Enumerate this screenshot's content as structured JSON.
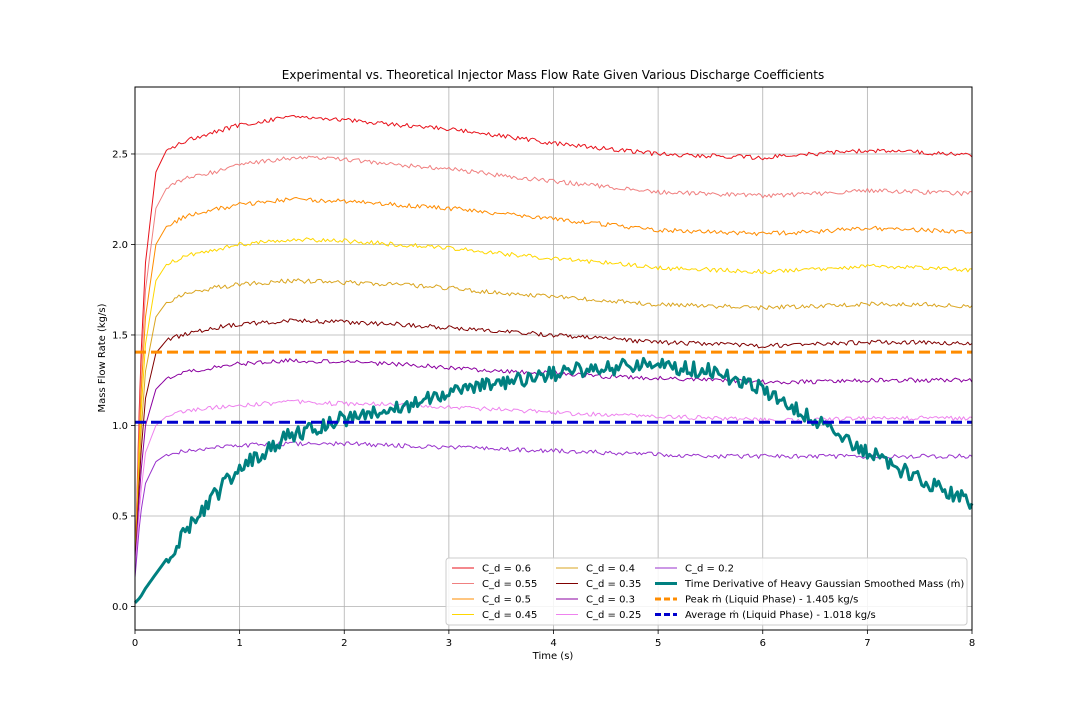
{
  "chart_data": {
    "type": "line",
    "title": "Experimental vs. Theoretical Injector Mass Flow Rate Given Various Discharge Coefficients",
    "xlabel": "Time (s)",
    "ylabel": "Mass Flow Rate (kg/s)",
    "xlim": [
      0,
      8
    ],
    "ylim": [
      -0.13,
      2.87
    ],
    "x_ticks": [
      "0",
      "1",
      "2",
      "3",
      "4",
      "5",
      "6",
      "7",
      "8"
    ],
    "y_ticks": [
      "0.0",
      "0.5",
      "1.0",
      "1.5",
      "2.0",
      "2.5"
    ],
    "grid": true,
    "legend_position": "lower-right",
    "x": [
      0.0,
      0.05,
      0.1,
      0.2,
      0.3,
      0.5,
      0.75,
      1.0,
      1.5,
      2.0,
      2.5,
      3.0,
      3.5,
      4.0,
      4.5,
      5.0,
      5.5,
      6.0,
      6.5,
      7.0,
      7.5,
      8.0
    ],
    "series": [
      {
        "name": "C_d = 0.6",
        "color": "#e8121b",
        "values": [
          0.2,
          1.3,
          1.9,
          2.4,
          2.52,
          2.58,
          2.62,
          2.66,
          2.71,
          2.69,
          2.66,
          2.64,
          2.6,
          2.56,
          2.53,
          2.5,
          2.49,
          2.48,
          2.5,
          2.52,
          2.51,
          2.49
        ]
      },
      {
        "name": "C_d = 0.55",
        "color": "#f08080",
        "values": [
          0.2,
          1.2,
          1.75,
          2.2,
          2.31,
          2.37,
          2.4,
          2.44,
          2.48,
          2.47,
          2.44,
          2.42,
          2.38,
          2.35,
          2.32,
          2.29,
          2.28,
          2.27,
          2.28,
          2.3,
          2.29,
          2.28
        ]
      },
      {
        "name": "C_d = 0.5",
        "color": "#ff8c00",
        "values": [
          0.2,
          1.1,
          1.6,
          2.0,
          2.1,
          2.16,
          2.19,
          2.22,
          2.25,
          2.24,
          2.22,
          2.2,
          2.17,
          2.14,
          2.11,
          2.08,
          2.07,
          2.06,
          2.07,
          2.09,
          2.08,
          2.07
        ]
      },
      {
        "name": "C_d = 0.45",
        "color": "#ffd700",
        "values": [
          0.2,
          1.0,
          1.45,
          1.8,
          1.89,
          1.94,
          1.97,
          2.0,
          2.03,
          2.02,
          2.0,
          1.98,
          1.95,
          1.92,
          1.9,
          1.87,
          1.86,
          1.85,
          1.86,
          1.88,
          1.87,
          1.86
        ]
      },
      {
        "name": "C_d = 0.4",
        "color": "#daa520",
        "values": [
          0.2,
          0.9,
          1.3,
          1.6,
          1.68,
          1.73,
          1.76,
          1.78,
          1.8,
          1.79,
          1.78,
          1.76,
          1.73,
          1.71,
          1.69,
          1.67,
          1.66,
          1.65,
          1.66,
          1.67,
          1.67,
          1.66
        ]
      },
      {
        "name": "C_d = 0.35",
        "color": "#800000",
        "values": [
          0.2,
          0.8,
          1.15,
          1.4,
          1.47,
          1.51,
          1.54,
          1.56,
          1.58,
          1.57,
          1.56,
          1.54,
          1.52,
          1.5,
          1.48,
          1.46,
          1.45,
          1.44,
          1.45,
          1.46,
          1.46,
          1.45
        ]
      },
      {
        "name": "C_d = 0.3",
        "color": "#8b00a0",
        "values": [
          0.2,
          0.7,
          1.0,
          1.2,
          1.26,
          1.3,
          1.32,
          1.34,
          1.36,
          1.35,
          1.34,
          1.32,
          1.3,
          1.29,
          1.27,
          1.26,
          1.25,
          1.24,
          1.24,
          1.25,
          1.25,
          1.25
        ]
      },
      {
        "name": "C_d = 0.25",
        "color": "#ee82ee",
        "values": [
          0.2,
          0.6,
          0.85,
          1.0,
          1.05,
          1.08,
          1.1,
          1.11,
          1.13,
          1.12,
          1.12,
          1.1,
          1.09,
          1.07,
          1.06,
          1.05,
          1.04,
          1.03,
          1.03,
          1.04,
          1.04,
          1.04
        ]
      },
      {
        "name": "C_d = 0.2",
        "color": "#9932cc",
        "values": [
          0.16,
          0.5,
          0.68,
          0.8,
          0.84,
          0.86,
          0.88,
          0.89,
          0.9,
          0.9,
          0.89,
          0.88,
          0.87,
          0.86,
          0.85,
          0.84,
          0.83,
          0.83,
          0.83,
          0.83,
          0.83,
          0.83
        ]
      },
      {
        "name": "Time Derivative of Heavy Gaussian Smoothed Mass (ṁ)",
        "color": "#008080",
        "values": [
          0.02,
          0.05,
          0.1,
          0.18,
          0.26,
          0.42,
          0.6,
          0.78,
          0.95,
          1.04,
          1.1,
          1.18,
          1.24,
          1.29,
          1.32,
          1.33,
          1.3,
          1.2,
          1.02,
          0.86,
          0.7,
          0.57
        ]
      },
      {
        "name": "Peak ṁ (Liquid Phase) - 1.405 kg/s",
        "color": "#ff8c00",
        "constant": 1.405
      },
      {
        "name": "Average ṁ (Liquid Phase) - 1.018 kg/s",
        "color": "#0000cd",
        "constant": 1.018
      }
    ]
  }
}
